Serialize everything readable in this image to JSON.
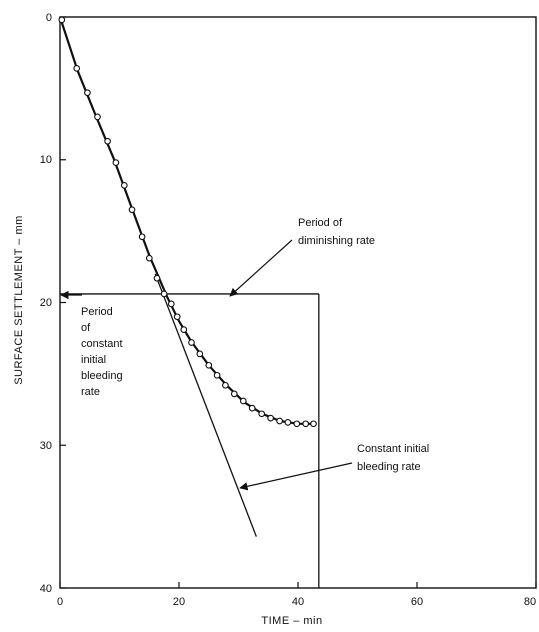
{
  "chart_data": {
    "type": "scatter",
    "xlabel": "TIME – min",
    "ylabel": "SURFACE SETTLEMENT – mm",
    "xlim": [
      0,
      80
    ],
    "ylim": [
      0,
      40
    ],
    "y_inverted": true,
    "x_ticks": [
      "0",
      "20",
      "40",
      "60",
      "80"
    ],
    "y_ticks": [
      "0",
      "10",
      "20",
      "30",
      "40"
    ],
    "grid": false,
    "series": [
      {
        "values": [
          [
            0.3,
            0.2
          ],
          [
            2.8,
            3.6
          ],
          [
            4.6,
            5.3
          ],
          [
            6.3,
            7.0
          ],
          [
            8.0,
            8.7
          ],
          [
            9.4,
            10.2
          ],
          [
            10.8,
            11.8
          ],
          [
            12.1,
            13.5
          ],
          [
            13.8,
            15.4
          ],
          [
            15.0,
            16.9
          ],
          [
            16.3,
            18.3
          ],
          [
            17.5,
            19.4
          ],
          [
            18.7,
            20.1
          ],
          [
            19.7,
            21.0
          ],
          [
            20.8,
            21.9
          ],
          [
            22.1,
            22.8
          ],
          [
            23.5,
            23.6
          ],
          [
            25.0,
            24.4
          ],
          [
            26.4,
            25.1
          ],
          [
            27.8,
            25.8
          ],
          [
            29.3,
            26.4
          ],
          [
            30.8,
            26.9
          ],
          [
            32.3,
            27.4
          ],
          [
            33.9,
            27.8
          ],
          [
            35.4,
            28.1
          ],
          [
            36.9,
            28.3
          ],
          [
            38.3,
            28.4
          ],
          [
            39.8,
            28.5
          ],
          [
            41.3,
            28.5
          ],
          [
            42.6,
            28.5
          ]
        ]
      }
    ],
    "fit_curve": [
      [
        0,
        0
      ],
      [
        3,
        3.8
      ],
      [
        6,
        6.9
      ],
      [
        9,
        9.9
      ],
      [
        12,
        13.3
      ],
      [
        15,
        16.7
      ],
      [
        18,
        19.6
      ],
      [
        20,
        21.3
      ],
      [
        22,
        22.7
      ],
      [
        25,
        24.4
      ],
      [
        28,
        25.8
      ],
      [
        31,
        27.0
      ],
      [
        34,
        27.8
      ],
      [
        37,
        28.3
      ],
      [
        40,
        28.5
      ],
      [
        43,
        28.5
      ]
    ],
    "tangent_line": [
      [
        16,
        18.0
      ],
      [
        33,
        36.4
      ]
    ],
    "reference_box": {
      "x0": 0,
      "x1": 43.5,
      "y0": 19.4,
      "y1": 40
    },
    "annotations": [
      {
        "lines": [
          "Period of",
          "diminishing rate"
        ]
      },
      {
        "lines": [
          "Period",
          "of",
          "constant",
          "initial",
          "bleeding",
          "rate"
        ]
      },
      {
        "lines": [
          "Constant initial",
          "bleeding rate"
        ]
      }
    ]
  }
}
